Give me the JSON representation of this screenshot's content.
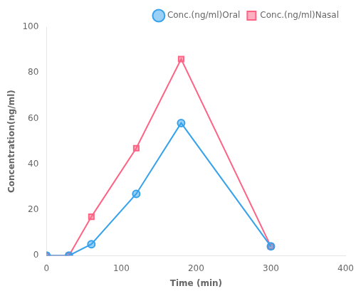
{
  "chart_data": {
    "type": "line",
    "x": [
      0,
      30,
      60,
      120,
      180,
      300
    ],
    "series": [
      {
        "name": "Conc.(ng/ml)Oral",
        "values": [
          0,
          0,
          5,
          27,
          58,
          4
        ],
        "marker": "circle"
      },
      {
        "name": "Conc.(ng/ml)Nasal",
        "values": [
          0,
          0,
          17,
          47,
          86,
          4
        ],
        "marker": "square"
      }
    ],
    "xlabel": "Time (min)",
    "ylabel": "Concentration(ng/ml)",
    "xlim": [
      0,
      400
    ],
    "ylim": [
      0,
      100
    ],
    "xticks": [
      0,
      100,
      200,
      300,
      400
    ],
    "yticks": [
      0,
      20,
      40,
      60,
      80,
      100
    ],
    "grid": false,
    "legend": "upper right"
  }
}
